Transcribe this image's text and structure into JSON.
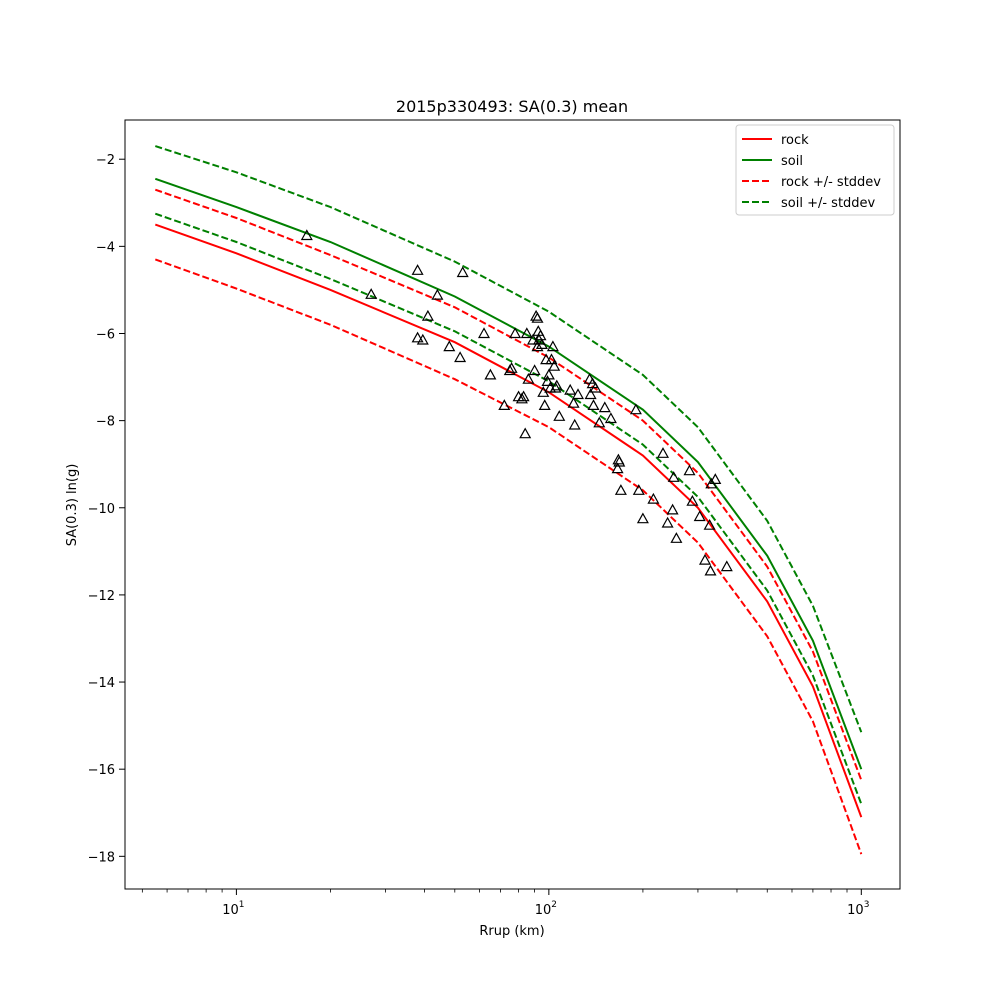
{
  "chart_data": {
    "type": "line",
    "title": "2015p330493: SA(0.3) mean",
    "xlabel": "Rrup (km)",
    "ylabel": "SA(0.3) ln(g)",
    "xscale": "log",
    "xlim": [
      4.4,
      1330
    ],
    "ylim": [
      -18.75,
      -1.1
    ],
    "xticks": [
      {
        "value": 10,
        "base": "10",
        "exp": "1"
      },
      {
        "value": 100,
        "base": "10",
        "exp": "2"
      },
      {
        "value": 1000,
        "base": "10",
        "exp": "3"
      }
    ],
    "yticks": [
      {
        "value": -2,
        "label": "−2"
      },
      {
        "value": -4,
        "label": "−4"
      },
      {
        "value": -6,
        "label": "−6"
      },
      {
        "value": -8,
        "label": "−8"
      },
      {
        "value": -10,
        "label": "−10"
      },
      {
        "value": -12,
        "label": "−12"
      },
      {
        "value": -14,
        "label": "−14"
      },
      {
        "value": -16,
        "label": "−16"
      },
      {
        "value": -18,
        "label": "−18"
      }
    ],
    "grid": false,
    "legend_position": "top-right",
    "series": [
      {
        "name": "rock",
        "color": "#ff0000",
        "style": "solid",
        "x": [
          5.5,
          10,
          20,
          50,
          100,
          200,
          300,
          500,
          700,
          1000
        ],
        "y": [
          -3.5,
          -4.16,
          -5.0,
          -6.2,
          -7.35,
          -8.8,
          -10.0,
          -12.15,
          -14.1,
          -17.1
        ]
      },
      {
        "name": "soil",
        "color": "#008000",
        "style": "solid",
        "x": [
          5.5,
          10,
          20,
          50,
          100,
          200,
          300,
          500,
          700,
          1000
        ],
        "y": [
          -2.45,
          -3.1,
          -3.9,
          -5.15,
          -6.3,
          -7.75,
          -8.95,
          -11.1,
          -13.05,
          -16.0
        ]
      },
      {
        "name": "rock +/- stddev",
        "color": "#ff0000",
        "style": "dashed",
        "x": [
          5.5,
          10,
          20,
          50,
          100,
          200,
          300,
          500,
          700,
          1000
        ],
        "y": [
          -4.3,
          -4.97,
          -5.8,
          -7.05,
          -8.15,
          -9.6,
          -10.8,
          -12.95,
          -14.9,
          -17.95
        ]
      },
      {
        "name": "rock +/- stddev (upper)",
        "color": "#ff0000",
        "style": "dashed",
        "x": [
          5.5,
          10,
          20,
          50,
          100,
          200,
          300,
          500,
          700,
          1000
        ],
        "y": [
          -2.7,
          -3.35,
          -4.2,
          -5.4,
          -6.55,
          -8.0,
          -9.2,
          -11.35,
          -13.3,
          -16.25
        ]
      },
      {
        "name": "soil +/- stddev",
        "color": "#008000",
        "style": "dashed",
        "x": [
          5.5,
          10,
          20,
          50,
          100,
          200,
          300,
          500,
          700,
          1000
        ],
        "y": [
          -1.7,
          -2.3,
          -3.1,
          -4.35,
          -5.5,
          -6.95,
          -8.15,
          -10.3,
          -12.25,
          -15.15
        ]
      },
      {
        "name": "soil +/- stddev (lower)",
        "color": "#008000",
        "style": "dashed",
        "x": [
          5.5,
          10,
          20,
          50,
          100,
          200,
          300,
          500,
          700,
          1000
        ],
        "y": [
          -3.25,
          -3.9,
          -4.75,
          -5.95,
          -7.1,
          -8.55,
          -9.75,
          -11.9,
          -13.85,
          -16.8
        ]
      }
    ],
    "legend_entries": [
      {
        "label": "rock",
        "color": "#ff0000",
        "style": "solid"
      },
      {
        "label": "soil",
        "color": "#008000",
        "style": "solid"
      },
      {
        "label": "rock +/- stddev",
        "color": "#ff0000",
        "style": "dashed"
      },
      {
        "label": "soil +/- stddev",
        "color": "#008000",
        "style": "dashed"
      }
    ],
    "observations": {
      "marker": "open-triangle",
      "color": "#000000",
      "points": [
        [
          16.8,
          -3.75
        ],
        [
          27,
          -5.1
        ],
        [
          38,
          -4.55
        ],
        [
          44,
          -5.12
        ],
        [
          53,
          -4.6
        ],
        [
          41,
          -5.6
        ],
        [
          38,
          -6.1
        ],
        [
          39.5,
          -6.15
        ],
        [
          48,
          -6.3
        ],
        [
          52,
          -6.55
        ],
        [
          62,
          -6.0
        ],
        [
          65,
          -6.95
        ],
        [
          72,
          -7.65
        ],
        [
          75,
          -6.85
        ],
        [
          76,
          -6.8
        ],
        [
          78,
          -6.0
        ],
        [
          80,
          -7.45
        ],
        [
          82,
          -7.5
        ],
        [
          83,
          -7.45
        ],
        [
          84,
          -8.3
        ],
        [
          85,
          -6.0
        ],
        [
          86,
          -7.05
        ],
        [
          89,
          -6.15
        ],
        [
          90,
          -6.85
        ],
        [
          91,
          -5.6
        ],
        [
          92,
          -5.65
        ],
        [
          92.5,
          -5.95
        ],
        [
          93,
          -6.15
        ],
        [
          94,
          -6.05
        ],
        [
          95,
          -6.25
        ],
        [
          92,
          -6.3
        ],
        [
          96,
          -7.35
        ],
        [
          97,
          -7.65
        ],
        [
          98,
          -6.6
        ],
        [
          99,
          -7.1
        ],
        [
          100,
          -6.95
        ],
        [
          101,
          -7.25
        ],
        [
          102,
          -6.6
        ],
        [
          103,
          -6.3
        ],
        [
          104,
          -6.75
        ],
        [
          105,
          -7.25
        ],
        [
          106,
          -7.2
        ],
        [
          108,
          -7.9
        ],
        [
          117,
          -7.3
        ],
        [
          120,
          -7.6
        ],
        [
          121,
          -8.1
        ],
        [
          124,
          -7.4
        ],
        [
          135,
          -7.05
        ],
        [
          136,
          -7.4
        ],
        [
          138,
          -7.15
        ],
        [
          139,
          -7.65
        ],
        [
          141,
          -7.25
        ],
        [
          145,
          -8.05
        ],
        [
          151,
          -7.7
        ],
        [
          158,
          -7.95
        ],
        [
          166,
          -9.1
        ],
        [
          167,
          -8.9
        ],
        [
          168,
          -8.95
        ],
        [
          170,
          -9.6
        ],
        [
          190,
          -7.75
        ],
        [
          194,
          -9.6
        ],
        [
          200,
          -10.25
        ],
        [
          216,
          -9.8
        ],
        [
          232,
          -8.75
        ],
        [
          240,
          -10.35
        ],
        [
          249,
          -10.05
        ],
        [
          251,
          -9.3
        ],
        [
          256,
          -10.7
        ],
        [
          282,
          -9.15
        ],
        [
          288,
          -9.85
        ],
        [
          304,
          -10.2
        ],
        [
          316,
          -11.2
        ],
        [
          327,
          -10.4
        ],
        [
          329,
          -11.45
        ],
        [
          331,
          -9.45
        ],
        [
          341,
          -9.35
        ],
        [
          371,
          -11.35
        ]
      ]
    }
  }
}
